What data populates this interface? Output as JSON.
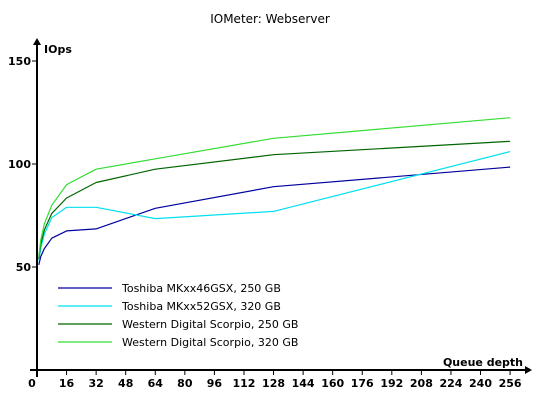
{
  "chart_data": {
    "type": "line",
    "title": "IOMeter: Webserver",
    "xlabel": "Queue depth",
    "ylabel": "IOps",
    "xlim": [
      0,
      260
    ],
    "ylim": [
      0,
      150
    ],
    "xticks": [
      16,
      32,
      48,
      64,
      80,
      96,
      112,
      128,
      144,
      160,
      176,
      192,
      208,
      224,
      240,
      256
    ],
    "yticks": [
      50,
      100,
      150
    ],
    "zero_label": "0",
    "grid": false,
    "legend_position": "bottom-left",
    "series": [
      {
        "name": "Toshiba MKxx46GSX, 250 GB",
        "color": "#0000a0",
        "x": [
          1,
          2,
          4,
          8,
          16,
          32,
          64,
          128,
          256
        ],
        "y": [
          51,
          55,
          59,
          64,
          67.5,
          68.5,
          78.5,
          89,
          98.5
        ]
      },
      {
        "name": "Toshiba MKxx52GSX, 320 GB",
        "color": "#00e0f0",
        "x": [
          1,
          2,
          4,
          8,
          16,
          32,
          64,
          128,
          256
        ],
        "y": [
          53,
          59,
          66,
          74,
          79,
          79,
          73.5,
          77,
          106
        ]
      },
      {
        "name": "Western Digital Scorpio, 250 GB",
        "color": "#006400",
        "x": [
          1,
          2,
          4,
          8,
          16,
          32,
          64,
          128,
          256
        ],
        "y": [
          54,
          61,
          68,
          76,
          83.5,
          91,
          97.5,
          104.5,
          111
        ]
      },
      {
        "name": "Western Digital Scorpio, 320 GB",
        "color": "#33dd33",
        "x": [
          1,
          2,
          4,
          8,
          16,
          32,
          64,
          128,
          256
        ],
        "y": [
          55,
          63,
          71,
          80,
          90,
          97.5,
          102.5,
          112.5,
          122.5
        ]
      }
    ]
  }
}
